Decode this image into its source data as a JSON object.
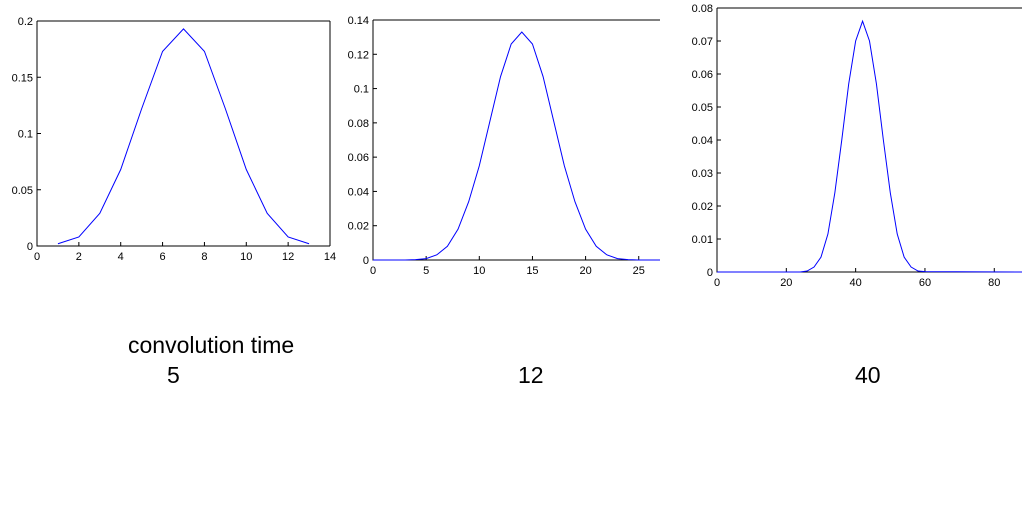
{
  "caption": {
    "title": "convolution time",
    "values": [
      "5",
      "12",
      "40"
    ]
  },
  "colors": {
    "line": "#0000ff",
    "axis": "#000000",
    "background": "#ffffff"
  },
  "chart_data": [
    {
      "type": "line",
      "title": "",
      "xlabel": "",
      "ylabel": "",
      "xlim": [
        0,
        14
      ],
      "ylim": [
        0,
        0.2
      ],
      "xticks": [
        0,
        2,
        4,
        6,
        8,
        10,
        12,
        14
      ],
      "xtick_labels": [
        "0",
        "2",
        "4",
        "6",
        "8",
        "10",
        "12",
        "14"
      ],
      "yticks": [
        0,
        0.05,
        0.1,
        0.15,
        0.2
      ],
      "ytick_labels": [
        "0",
        "0.05",
        "0.1",
        "0.15",
        "0.2"
      ],
      "grid": false,
      "series": [
        {
          "x": [
            1,
            2,
            3,
            4,
            5,
            6,
            7,
            8,
            9,
            10,
            11,
            12,
            13
          ],
          "y": [
            0.002,
            0.008,
            0.029,
            0.068,
            0.122,
            0.173,
            0.193,
            0.173,
            0.122,
            0.068,
            0.029,
            0.008,
            0.002
          ]
        }
      ]
    },
    {
      "type": "line",
      "title": "",
      "xlabel": "",
      "ylabel": "",
      "xlim": [
        0,
        27
      ],
      "ylim": [
        0,
        0.14
      ],
      "xticks": [
        0,
        5,
        10,
        15,
        20,
        25
      ],
      "xtick_labels": [
        "0",
        "5",
        "10",
        "15",
        "20",
        "25"
      ],
      "yticks": [
        0,
        0.02,
        0.04,
        0.06,
        0.08,
        0.1,
        0.12,
        0.14
      ],
      "ytick_labels": [
        "0",
        "0.02",
        "0.04",
        "0.06",
        "0.08",
        "0.1",
        "0.12",
        "0.14"
      ],
      "grid": false,
      "series": [
        {
          "x": [
            0,
            1,
            2,
            3,
            4,
            5,
            6,
            7,
            8,
            9,
            10,
            11,
            12,
            13,
            14,
            15,
            16,
            17,
            18,
            19,
            20,
            21,
            22,
            23,
            24,
            25,
            26,
            27
          ],
          "y": [
            0,
            0,
            0,
            0,
            0.0002,
            0.0008,
            0.003,
            0.008,
            0.018,
            0.034,
            0.055,
            0.081,
            0.107,
            0.126,
            0.133,
            0.126,
            0.107,
            0.081,
            0.055,
            0.034,
            0.018,
            0.008,
            0.003,
            0.0008,
            0.0002,
            0,
            0,
            0
          ]
        }
      ]
    },
    {
      "type": "line",
      "title": "",
      "xlabel": "",
      "ylabel": "",
      "xlim": [
        0,
        88
      ],
      "ylim": [
        0,
        0.08
      ],
      "xticks": [
        0,
        20,
        40,
        60,
        80
      ],
      "xtick_labels": [
        "0",
        "20",
        "40",
        "60",
        "80"
      ],
      "yticks": [
        0,
        0.01,
        0.02,
        0.03,
        0.04,
        0.05,
        0.06,
        0.07,
        0.08
      ],
      "ytick_labels": [
        "0",
        "0.01",
        "0.02",
        "0.03",
        "0.04",
        "0.05",
        "0.06",
        "0.07",
        "0.08"
      ],
      "grid": false,
      "series": [
        {
          "x": [
            0,
            24,
            26,
            28,
            30,
            32,
            34,
            36,
            38,
            40,
            42,
            44,
            46,
            48,
            50,
            52,
            54,
            56,
            58,
            60,
            88
          ],
          "y": [
            0,
            0,
            0.0003,
            0.0015,
            0.0045,
            0.0115,
            0.024,
            0.04,
            0.057,
            0.07,
            0.076,
            0.07,
            0.057,
            0.04,
            0.024,
            0.0115,
            0.0045,
            0.0015,
            0.0003,
            0.0001,
            0
          ]
        }
      ]
    }
  ]
}
